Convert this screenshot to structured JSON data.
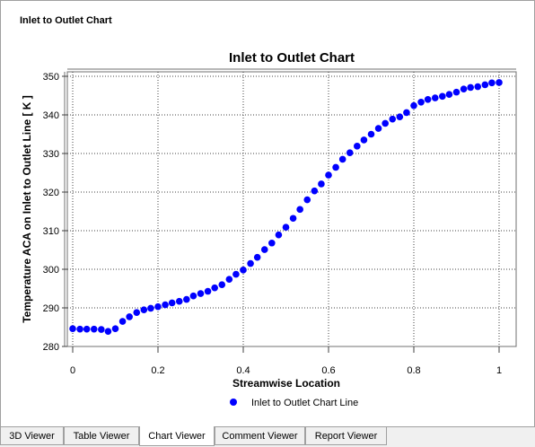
{
  "panel": {
    "title": "Inlet to Outlet Chart"
  },
  "chart_data": {
    "type": "scatter",
    "title": "Inlet to Outlet Chart",
    "xlabel": "Streamwise Location",
    "ylabel": "Temperature ACA on Inlet to Outlet Line [ K ]",
    "xlim": [
      0,
      1
    ],
    "ylim": [
      280,
      350
    ],
    "xticks": [
      0,
      0.2,
      0.4,
      0.6,
      0.8,
      1
    ],
    "xtick_labels": [
      "0",
      "0.2",
      "0.4",
      "0.6",
      "0.8",
      "1"
    ],
    "yticks": [
      280,
      290,
      300,
      310,
      320,
      330,
      340,
      350
    ],
    "ytick_labels": [
      "280",
      "290",
      "300",
      "310",
      "320",
      "330",
      "340",
      "350"
    ],
    "grid": true,
    "legend_position": "bottom-center",
    "series": [
      {
        "name": "Inlet to Outlet Chart Line",
        "color": "#0000ff",
        "x": [
          0,
          0.017,
          0.033,
          0.05,
          0.067,
          0.083,
          0.1,
          0.117,
          0.133,
          0.15,
          0.167,
          0.183,
          0.2,
          0.217,
          0.233,
          0.25,
          0.267,
          0.283,
          0.3,
          0.317,
          0.333,
          0.35,
          0.367,
          0.383,
          0.4,
          0.417,
          0.433,
          0.45,
          0.467,
          0.483,
          0.5,
          0.517,
          0.533,
          0.55,
          0.567,
          0.583,
          0.6,
          0.617,
          0.633,
          0.65,
          0.667,
          0.683,
          0.7,
          0.717,
          0.733,
          0.75,
          0.767,
          0.783,
          0.8,
          0.817,
          0.833,
          0.85,
          0.867,
          0.883,
          0.9,
          0.917,
          0.933,
          0.95,
          0.967,
          0.983,
          1
        ],
        "y": [
          284.6,
          284.5,
          284.5,
          284.5,
          284.4,
          283.9,
          284.6,
          286.5,
          287.7,
          288.8,
          289.5,
          289.9,
          290.3,
          290.8,
          291.3,
          291.7,
          292.2,
          293.1,
          293.7,
          294.3,
          295.2,
          296.0,
          297.4,
          298.7,
          299.8,
          301.5,
          303.1,
          305.1,
          306.8,
          308.9,
          310.9,
          313.2,
          315.5,
          318.0,
          320.3,
          322.1,
          324.4,
          326.4,
          328.5,
          330.2,
          331.9,
          333.5,
          335.0,
          336.5,
          337.8,
          338.9,
          339.5,
          340.6,
          342.4,
          343.3,
          344.0,
          344.4,
          344.8,
          345.3,
          345.9,
          346.7,
          347.1,
          347.3,
          347.8,
          348.3,
          348.4
        ]
      }
    ]
  },
  "tabs": [
    {
      "label": "3D Viewer",
      "active": false
    },
    {
      "label": "Table Viewer",
      "active": false
    },
    {
      "label": "Chart Viewer",
      "active": true
    },
    {
      "label": "Comment Viewer",
      "active": false
    },
    {
      "label": "Report Viewer",
      "active": false
    }
  ]
}
